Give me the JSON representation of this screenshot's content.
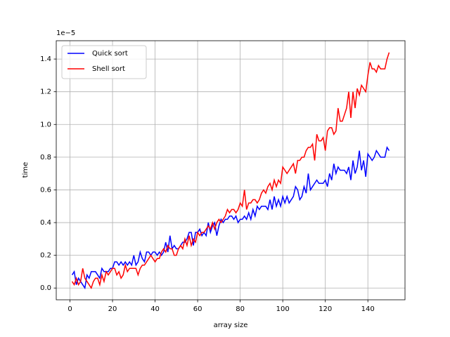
{
  "chart_data": {
    "type": "line",
    "offset_label": "1e−5",
    "x_label": "array size",
    "y_label": "time",
    "x": [
      1,
      2,
      3,
      4,
      5,
      6,
      7,
      8,
      9,
      10,
      11,
      12,
      13,
      14,
      15,
      16,
      17,
      18,
      19,
      20,
      21,
      22,
      23,
      24,
      25,
      26,
      27,
      28,
      29,
      30,
      31,
      32,
      33,
      34,
      35,
      36,
      37,
      38,
      39,
      40,
      41,
      42,
      43,
      44,
      45,
      46,
      47,
      48,
      49,
      50,
      51,
      52,
      53,
      54,
      55,
      56,
      57,
      58,
      59,
      60,
      61,
      62,
      63,
      64,
      65,
      66,
      67,
      68,
      69,
      70,
      71,
      72,
      73,
      74,
      75,
      76,
      77,
      78,
      79,
      80,
      81,
      82,
      83,
      84,
      85,
      86,
      87,
      88,
      89,
      90,
      91,
      92,
      93,
      94,
      95,
      96,
      97,
      98,
      99,
      100,
      101,
      102,
      103,
      104,
      105,
      106,
      107,
      108,
      109,
      110,
      111,
      112,
      113,
      114,
      115,
      116,
      117,
      118,
      119,
      120,
      121,
      122,
      123,
      124,
      125,
      126,
      127,
      128,
      129,
      130,
      131,
      132,
      133,
      134,
      135,
      136,
      137,
      138,
      139,
      140,
      141,
      142,
      143,
      144,
      145,
      146,
      147,
      148,
      149,
      150
    ],
    "series": [
      {
        "name": "Quick sort",
        "color": "#0000ff",
        "values": [
          0.08,
          0.1,
          0.02,
          0.06,
          0.04,
          0.02,
          0.0,
          0.08,
          0.06,
          0.1,
          0.1,
          0.1,
          0.08,
          0.06,
          0.12,
          0.1,
          0.1,
          0.1,
          0.12,
          0.12,
          0.16,
          0.16,
          0.14,
          0.16,
          0.14,
          0.16,
          0.14,
          0.16,
          0.14,
          0.2,
          0.14,
          0.16,
          0.22,
          0.18,
          0.16,
          0.22,
          0.22,
          0.2,
          0.22,
          0.22,
          0.2,
          0.22,
          0.2,
          0.22,
          0.28,
          0.22,
          0.32,
          0.24,
          0.26,
          0.24,
          0.24,
          0.26,
          0.28,
          0.28,
          0.3,
          0.34,
          0.34,
          0.26,
          0.34,
          0.34,
          0.36,
          0.32,
          0.34,
          0.32,
          0.4,
          0.34,
          0.38,
          0.4,
          0.32,
          0.38,
          0.42,
          0.4,
          0.42,
          0.42,
          0.44,
          0.44,
          0.42,
          0.44,
          0.4,
          0.42,
          0.42,
          0.44,
          0.42,
          0.46,
          0.42,
          0.48,
          0.44,
          0.5,
          0.48,
          0.5,
          0.5,
          0.5,
          0.48,
          0.54,
          0.48,
          0.56,
          0.5,
          0.54,
          0.5,
          0.56,
          0.52,
          0.56,
          0.52,
          0.54,
          0.56,
          0.62,
          0.6,
          0.54,
          0.56,
          0.62,
          0.58,
          0.7,
          0.6,
          0.62,
          0.64,
          0.66,
          0.64,
          0.64,
          0.64,
          0.66,
          0.62,
          0.7,
          0.66,
          0.76,
          0.7,
          0.74,
          0.72,
          0.72,
          0.72,
          0.7,
          0.74,
          0.66,
          0.78,
          0.7,
          0.74,
          0.84,
          0.72,
          0.78,
          0.68,
          0.82,
          0.8,
          0.78,
          0.8,
          0.84,
          0.82,
          0.8,
          0.8,
          0.8,
          0.86,
          0.84
        ]
      },
      {
        "name": "Shell sort",
        "color": "#ff0000",
        "values": [
          0.04,
          0.02,
          0.06,
          0.02,
          0.04,
          0.12,
          0.06,
          0.04,
          0.02,
          0.0,
          0.04,
          0.06,
          0.06,
          0.02,
          0.08,
          0.04,
          0.1,
          0.08,
          0.1,
          0.12,
          0.12,
          0.08,
          0.1,
          0.06,
          0.08,
          0.14,
          0.1,
          0.12,
          0.12,
          0.12,
          0.12,
          0.08,
          0.12,
          0.14,
          0.14,
          0.16,
          0.18,
          0.2,
          0.18,
          0.16,
          0.18,
          0.18,
          0.22,
          0.24,
          0.22,
          0.26,
          0.24,
          0.24,
          0.2,
          0.2,
          0.24,
          0.26,
          0.24,
          0.3,
          0.26,
          0.32,
          0.26,
          0.3,
          0.28,
          0.34,
          0.32,
          0.34,
          0.34,
          0.36,
          0.38,
          0.36,
          0.4,
          0.36,
          0.4,
          0.42,
          0.4,
          0.42,
          0.44,
          0.48,
          0.46,
          0.48,
          0.48,
          0.46,
          0.48,
          0.52,
          0.5,
          0.6,
          0.48,
          0.52,
          0.52,
          0.54,
          0.54,
          0.52,
          0.54,
          0.58,
          0.6,
          0.58,
          0.62,
          0.64,
          0.6,
          0.66,
          0.62,
          0.66,
          0.64,
          0.74,
          0.72,
          0.7,
          0.72,
          0.74,
          0.76,
          0.7,
          0.78,
          0.78,
          0.8,
          0.8,
          0.84,
          0.86,
          0.86,
          0.88,
          0.78,
          0.94,
          0.9,
          0.9,
          0.92,
          0.84,
          0.96,
          0.98,
          0.98,
          0.94,
          0.96,
          1.1,
          1.02,
          1.02,
          1.06,
          1.1,
          1.2,
          1.04,
          1.2,
          1.1,
          1.22,
          1.18,
          1.24,
          1.22,
          1.2,
          1.3,
          1.38,
          1.34,
          1.34,
          1.32,
          1.36,
          1.34,
          1.34,
          1.34,
          1.4,
          1.44
        ]
      }
    ],
    "xlim": [
      -6.45,
      157.45
    ],
    "ylim": [
      -0.072,
      1.512
    ],
    "xticks": [
      0,
      20,
      40,
      60,
      80,
      100,
      120,
      140
    ],
    "yticks": [
      {
        "value": 0,
        "label": "0.0"
      },
      0.2,
      0.4,
      0.6,
      0.8,
      {
        "value": 1,
        "label": "1.0"
      },
      1.2,
      1.4
    ],
    "grid": true,
    "legend": "upper-left"
  }
}
